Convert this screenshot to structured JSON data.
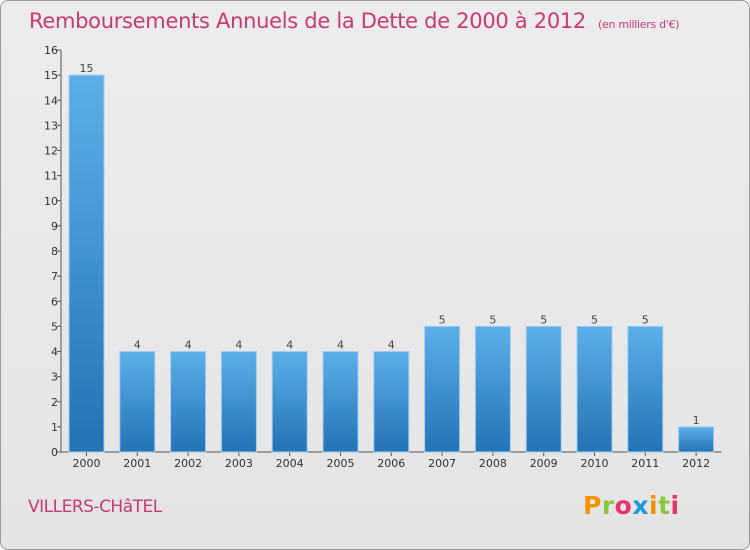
{
  "title": "Remboursements Annuels de la Dette de 2000 à 2012",
  "subtitle": "(en milliers d'€)",
  "commune": "VILLERS-CHâTEL",
  "logo": {
    "letters": [
      "P",
      "r",
      "o",
      "x",
      "i",
      "t",
      "i"
    ],
    "colors": [
      "#f39200",
      "#8cc63f",
      "#e8336b",
      "#1a9ad6",
      "#f39200",
      "#8cc63f",
      "#e8336b"
    ]
  },
  "colors": {
    "accent": "#c73a73",
    "bar_light": "#5caee8",
    "bar_dark": "#2473b5"
  },
  "chart_data": {
    "type": "bar",
    "categories": [
      "2000",
      "2001",
      "2002",
      "2003",
      "2004",
      "2005",
      "2006",
      "2007",
      "2008",
      "2009",
      "2010",
      "2011",
      "2012"
    ],
    "values": [
      15,
      4,
      4,
      4,
      4,
      4,
      4,
      5,
      5,
      5,
      5,
      5,
      1
    ],
    "title": "Remboursements Annuels de la Dette de 2000 à 2012",
    "ylim": [
      0,
      16
    ],
    "yticks": [
      0,
      1,
      2,
      3,
      4,
      5,
      6,
      7,
      8,
      9,
      10,
      11,
      12,
      13,
      14,
      15,
      16
    ],
    "grid": false
  }
}
